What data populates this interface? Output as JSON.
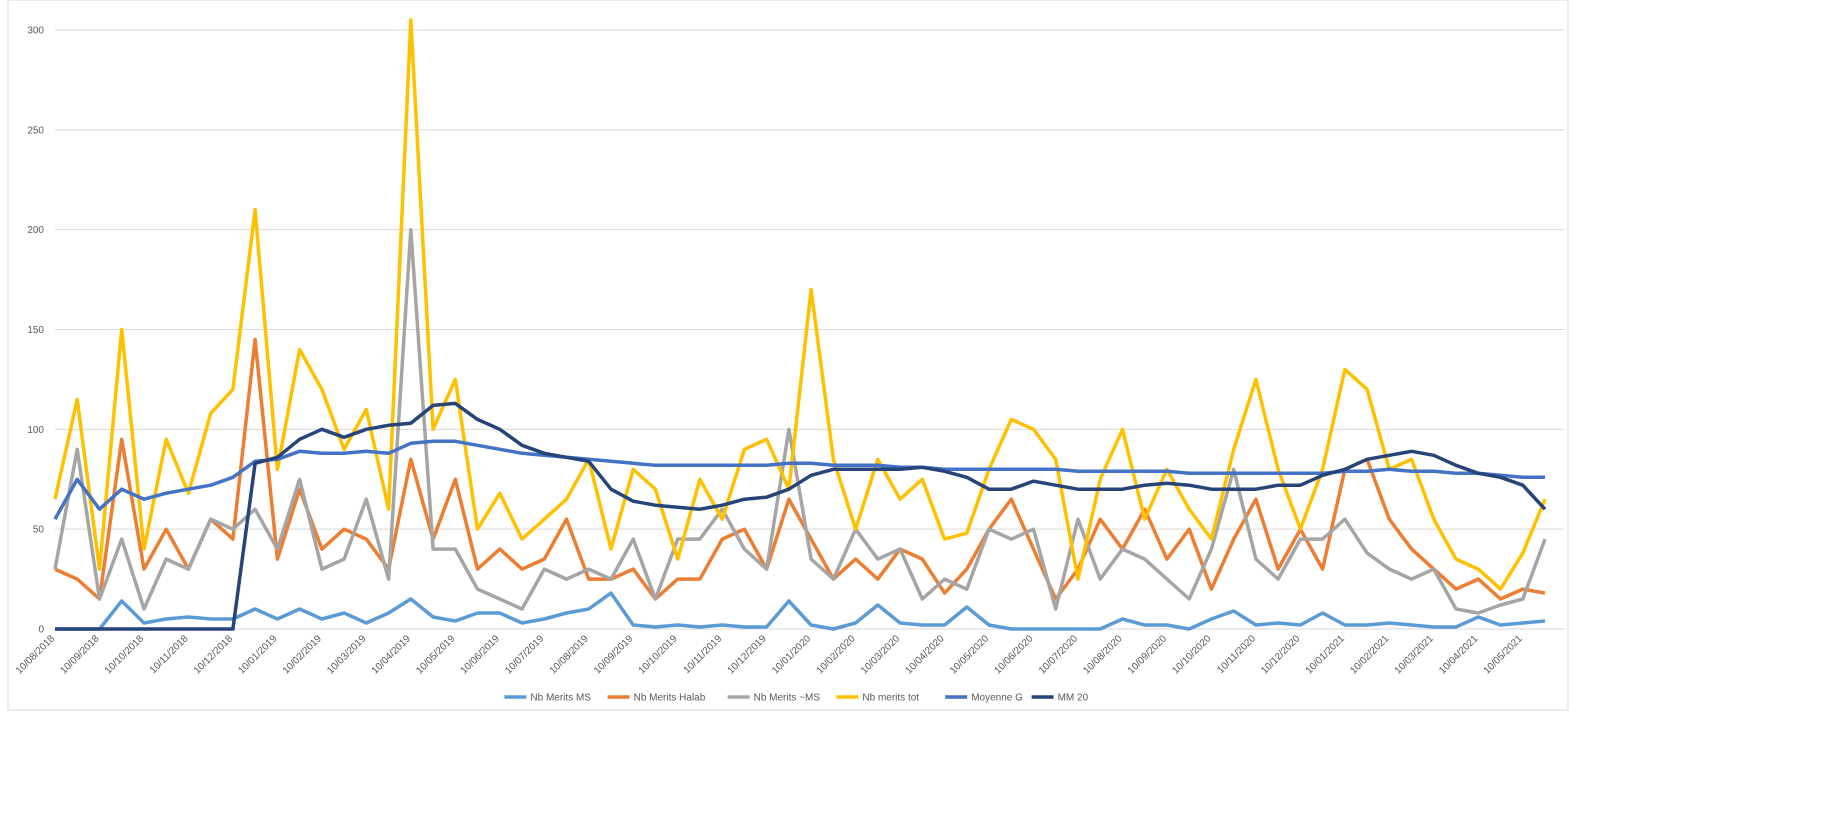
{
  "chart_data": {
    "type": "line",
    "categories": [
      "10/08/2018",
      null,
      "10/09/2018",
      null,
      "10/10/2018",
      null,
      "10/11/2018",
      null,
      "10/12/2018",
      null,
      "10/01/2019",
      null,
      "10/02/2019",
      null,
      "10/03/2019",
      null,
      "10/04/2019",
      null,
      "10/05/2019",
      null,
      "10/06/2019",
      null,
      "10/07/2019",
      null,
      "10/08/2019",
      null,
      "10/09/2019",
      null,
      "10/10/2019",
      null,
      "10/11/2019",
      null,
      "10/12/2019",
      null,
      "10/01/2020",
      null,
      "10/02/2020",
      null,
      "10/03/2020",
      null,
      "10/04/2020",
      null,
      "10/05/2020",
      null,
      "10/06/2020",
      null,
      "10/07/2020",
      null,
      "10/08/2020",
      null,
      "10/09/2020",
      null,
      "10/10/2020",
      null,
      "10/11/2020",
      null,
      "10/12/2020",
      null,
      "10/01/2021",
      null,
      "10/02/2021",
      null,
      "10/03/2021",
      null,
      "10/04/2021",
      null,
      "10/05/2021",
      null
    ],
    "series": [
      {
        "name": "Nb Merits MS",
        "color": "#5b9bd5",
        "values": [
          0,
          0,
          0,
          14,
          3,
          5,
          6,
          5,
          5,
          10,
          5,
          10,
          5,
          8,
          3,
          8,
          15,
          6,
          4,
          8,
          8,
          3,
          5,
          8,
          10,
          18,
          2,
          1,
          2,
          1,
          2,
          1,
          1,
          14,
          2,
          0,
          3,
          12,
          3,
          2,
          2,
          11,
          2,
          0,
          0,
          0,
          0,
          0,
          5,
          2,
          2,
          0,
          5,
          9,
          2,
          3,
          2,
          8,
          2,
          2,
          3,
          2,
          1,
          1,
          6,
          2,
          3,
          4
        ]
      },
      {
        "name": "Nb Merits Halab",
        "color": "#ed7d31",
        "values": [
          30,
          25,
          15,
          95,
          30,
          50,
          30,
          55,
          45,
          145,
          35,
          70,
          40,
          50,
          45,
          30,
          85,
          45,
          75,
          30,
          40,
          30,
          35,
          55,
          25,
          25,
          30,
          15,
          25,
          25,
          45,
          50,
          30,
          65,
          45,
          25,
          35,
          25,
          40,
          35,
          18,
          30,
          50,
          65,
          40,
          15,
          30,
          55,
          40,
          60,
          35,
          50,
          20,
          45,
          65,
          30,
          50,
          30,
          80,
          85,
          55,
          40,
          30,
          20,
          25,
          15,
          20,
          18
        ]
      },
      {
        "name": "Nb Merits ~MS",
        "color": "#a5a5a5",
        "values": [
          30,
          90,
          15,
          45,
          10,
          35,
          30,
          55,
          50,
          60,
          40,
          75,
          30,
          35,
          65,
          25,
          200,
          40,
          40,
          20,
          15,
          10,
          30,
          25,
          30,
          25,
          45,
          15,
          45,
          45,
          60,
          40,
          30,
          100,
          35,
          25,
          50,
          35,
          40,
          15,
          25,
          20,
          50,
          45,
          50,
          10,
          55,
          25,
          40,
          35,
          25,
          15,
          40,
          80,
          35,
          25,
          45,
          45,
          55,
          38,
          30,
          25,
          30,
          10,
          8,
          12,
          15,
          45
        ]
      },
      {
        "name": "Nb merits tot",
        "color": "#ffc000",
        "values": [
          65,
          115,
          30,
          150,
          40,
          95,
          68,
          108,
          120,
          210,
          80,
          140,
          120,
          90,
          110,
          60,
          305,
          100,
          125,
          50,
          68,
          45,
          55,
          65,
          85,
          40,
          80,
          70,
          35,
          75,
          55,
          90,
          95,
          70,
          170,
          85,
          50,
          85,
          65,
          75,
          45,
          48,
          80,
          105,
          100,
          85,
          25,
          75,
          100,
          55,
          80,
          60,
          45,
          90,
          125,
          80,
          50,
          80,
          130,
          120,
          80,
          85,
          55,
          35,
          30,
          20,
          38,
          65
        ]
      },
      {
        "name": "Moyenne G",
        "color": "#4472c4",
        "values": [
          55,
          75,
          60,
          70,
          65,
          68,
          70,
          72,
          76,
          84,
          85,
          89,
          88,
          88,
          89,
          88,
          93,
          94,
          94,
          92,
          90,
          88,
          87,
          86,
          85,
          84,
          83,
          82,
          82,
          82,
          82,
          82,
          82,
          83,
          83,
          82,
          82,
          82,
          81,
          81,
          80,
          80,
          80,
          80,
          80,
          80,
          79,
          79,
          79,
          79,
          79,
          78,
          78,
          78,
          78,
          78,
          78,
          78,
          79,
          79,
          80,
          79,
          79,
          78,
          78,
          77,
          76,
          76
        ]
      },
      {
        "name": "MM 20",
        "color": "#264478",
        "values": [
          0,
          0,
          0,
          0,
          0,
          0,
          0,
          0,
          0,
          83,
          86,
          95,
          100,
          96,
          100,
          102,
          103,
          112,
          113,
          105,
          100,
          92,
          88,
          86,
          84,
          70,
          64,
          62,
          61,
          60,
          62,
          65,
          66,
          70,
          77,
          80,
          80,
          80,
          80,
          81,
          79,
          76,
          70,
          70,
          74,
          72,
          70,
          70,
          70,
          72,
          73,
          72,
          70,
          70,
          70,
          72,
          72,
          77,
          80,
          85,
          87,
          89,
          87,
          82,
          78,
          76,
          72,
          60
        ]
      }
    ],
    "ylim": [
      0,
      300
    ],
    "yticks": [
      0,
      50,
      100,
      150,
      200,
      250,
      300
    ],
    "grid": true,
    "legend": "bottom"
  }
}
